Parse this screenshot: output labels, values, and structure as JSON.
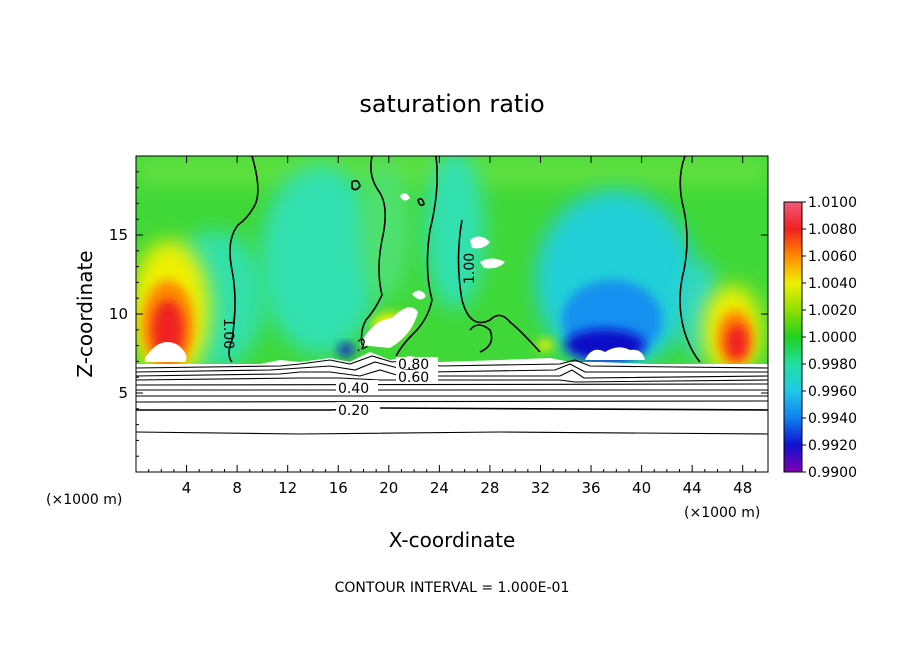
{
  "chart_data": {
    "type": "heatmap",
    "title": "saturation ratio",
    "xlabel": "X-coordinate",
    "ylabel": "Z-coordinate",
    "x_unit_label": "(×1000 m)",
    "xlim": [
      0,
      50
    ],
    "ylim": [
      0,
      20
    ],
    "x_ticks": [
      4,
      8,
      12,
      16,
      20,
      24,
      28,
      32,
      36,
      40,
      44,
      48
    ],
    "y_ticks": [
      5,
      10,
      15
    ],
    "footer": "CONTOUR INTERVAL = 1.000E-01",
    "colorbar": {
      "labels": [
        "1.0100",
        "1.0080",
        "1.0060",
        "1.0040",
        "1.0020",
        "1.0000",
        "0.9980",
        "0.9960",
        "0.9940",
        "0.9920",
        "0.9900"
      ],
      "values": [
        1.01,
        1.008,
        1.006,
        1.004,
        1.002,
        1.0,
        0.998,
        0.996,
        0.994,
        0.992,
        0.99
      ],
      "colors": [
        "#f05a78",
        "#f02020",
        "#ff8a00",
        "#f0f000",
        "#90e000",
        "#20d020",
        "#20e0a0",
        "#20c8e8",
        "#1080f0",
        "#1010d0",
        "#8000b0"
      ]
    },
    "contour_labels": [
      {
        "text": "1.00",
        "x": 7.2,
        "z": 10.0
      },
      {
        "text": "1.00",
        "x": 27.3,
        "z": 11.0
      },
      {
        "text": "0.80",
        "x": 22.2,
        "z": 6.6
      },
      {
        "text": "0.60",
        "x": 22.2,
        "z": 5.9
      },
      {
        "text": "0.40",
        "x": 17.3,
        "z": 5.4
      },
      {
        "text": "0.20",
        "x": 17.3,
        "z": 3.9
      },
      {
        "text": ".2",
        "x": 16.6,
        "z": 6.6
      }
    ]
  }
}
